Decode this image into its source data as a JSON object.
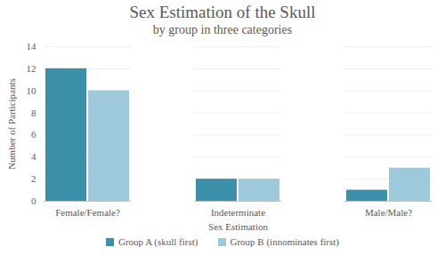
{
  "chart_data": {
    "type": "bar",
    "title": "Sex Estimation of the Skull",
    "subtitle": "by group in three categories",
    "x_label": "Sex Estimation",
    "y_label": "Number of Participants",
    "categories": [
      "Female/Female?",
      "Indeterminate",
      "Male/Male?"
    ],
    "series": [
      {
        "name": "Group A (skull first)",
        "color": "#3b8fa8",
        "values": [
          12,
          2,
          1
        ]
      },
      {
        "name": "Group B (innominates first)",
        "color": "#9ec8dc",
        "values": [
          10,
          2,
          3
        ]
      }
    ],
    "ylim": [
      0,
      14
    ],
    "yticks": [
      0,
      2,
      4,
      6,
      8,
      10,
      12,
      14
    ],
    "grid": true,
    "legend": "bottom"
  }
}
